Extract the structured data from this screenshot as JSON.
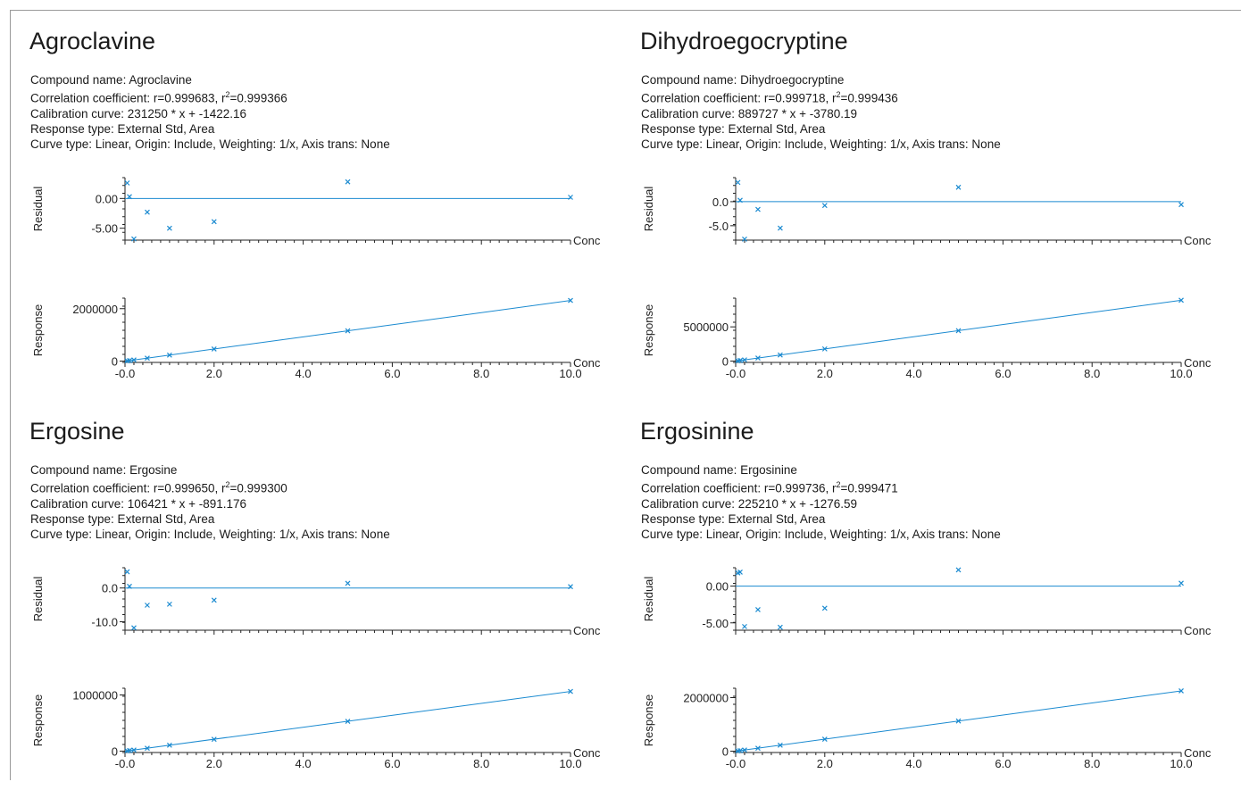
{
  "accent_color": "#1a8ad0",
  "panels": [
    {
      "title": "Agroclavine",
      "compound_line": "Compound name: Agroclavine",
      "correlation_prefix": "Correlation coefficient: r=0.999683, r",
      "correlation_suffix": "=0.999366",
      "calibration_line": "Calibration curve: 231250 * x + -1422.16",
      "response_type_line": "Response type: External Std, Area",
      "curve_type_line": "Curve type: Linear, Origin: Include, Weighting: 1/x, Axis trans: None"
    },
    {
      "title": "Dihydroegocryptine",
      "compound_line": "Compound name: Dihydroegocryptine",
      "correlation_prefix": "Correlation coefficient: r=0.999718, r",
      "correlation_suffix": "=0.999436",
      "calibration_line": "Calibration curve: 889727 * x + -3780.19",
      "response_type_line": "Response type: External Std, Area",
      "curve_type_line": "Curve type: Linear, Origin: Include, Weighting: 1/x, Axis trans: None"
    },
    {
      "title": "Ergosine",
      "compound_line": "Compound name: Ergosine",
      "correlation_prefix": "Correlation coefficient: r=0.999650, r",
      "correlation_suffix": "=0.999300",
      "calibration_line": "Calibration curve: 106421 * x + -891.176",
      "response_type_line": "Response type: External Std, Area",
      "curve_type_line": "Curve type: Linear, Origin: Include, Weighting: 1/x, Axis trans: None"
    },
    {
      "title": "Ergosinine",
      "compound_line": "Compound name: Ergosinine",
      "correlation_prefix": "Correlation coefficient: r=0.999736, r",
      "correlation_suffix": "=0.999471",
      "calibration_line": "Calibration curve: 225210 * x + -1276.59",
      "response_type_line": "Response type: External Std, Area",
      "curve_type_line": "Curve type: Linear, Origin: Include, Weighting: 1/x, Axis trans: None"
    }
  ],
  "chart_data": [
    {
      "type": "scatter",
      "title": "Agroclavine",
      "plot": "residual",
      "ylabel": "Residual",
      "xlabel": "Conc",
      "xlim": [
        0,
        10
      ],
      "ylim": [
        -7,
        3.5
      ],
      "yticks": [
        0,
        -5
      ],
      "ytick_labels": [
        "0.00",
        "-5.00"
      ],
      "points": [
        [
          0.05,
          2.6
        ],
        [
          0.1,
          0.3
        ],
        [
          0.2,
          -6.8
        ],
        [
          0.5,
          -2.3
        ],
        [
          1.0,
          -5.0
        ],
        [
          2.0,
          -3.9
        ],
        [
          5.0,
          2.8
        ],
        [
          10.0,
          0.2
        ]
      ],
      "fit_line": [
        [
          0,
          0
        ],
        [
          10,
          0
        ]
      ]
    },
    {
      "type": "scatter",
      "title": "Agroclavine",
      "plot": "response",
      "ylabel": "Response",
      "xlabel": "Conc",
      "xlim": [
        0,
        10
      ],
      "ylim": [
        -50000,
        2400000
      ],
      "yticks": [
        0,
        2000000
      ],
      "ytick_labels": [
        "0",
        "2000000"
      ],
      "xticks": [
        0,
        2,
        4,
        6,
        8,
        10
      ],
      "xtick_labels": [
        "-0.0",
        "2.0",
        "4.0",
        "6.0",
        "8.0",
        "10.0"
      ],
      "points": [
        [
          0.05,
          10140
        ],
        [
          0.1,
          21700
        ],
        [
          0.2,
          45000
        ],
        [
          0.5,
          114000
        ],
        [
          1.0,
          229800
        ],
        [
          2.0,
          461000
        ],
        [
          5.0,
          1156000
        ],
        [
          10.0,
          2312000
        ]
      ],
      "fit_line": [
        [
          0,
          -1422.16
        ],
        [
          10,
          2311077.84
        ]
      ]
    },
    {
      "type": "scatter",
      "title": "Dihydroegocryptine",
      "plot": "residual",
      "ylabel": "Residual",
      "xlabel": "Conc",
      "xlim": [
        0,
        10
      ],
      "ylim": [
        -8,
        5
      ],
      "yticks": [
        0,
        -5
      ],
      "ytick_labels": [
        "0.0",
        "-5.0"
      ],
      "points": [
        [
          0.05,
          4.0
        ],
        [
          0.1,
          0.3
        ],
        [
          0.2,
          -7.8
        ],
        [
          0.5,
          -1.6
        ],
        [
          1.0,
          -5.5
        ],
        [
          2.0,
          -0.8
        ],
        [
          5.0,
          3.0
        ],
        [
          10.0,
          -0.6
        ]
      ],
      "fit_line": [
        [
          0,
          0
        ],
        [
          10,
          0
        ]
      ]
    },
    {
      "type": "scatter",
      "title": "Dihydroegocryptine",
      "plot": "response",
      "ylabel": "Response",
      "xlabel": "Conc",
      "xlim": [
        0,
        10
      ],
      "ylim": [
        -200000,
        9200000
      ],
      "yticks": [
        0,
        5000000
      ],
      "ytick_labels": [
        "0",
        "5000000"
      ],
      "points": [
        [
          0.05,
          40700
        ],
        [
          0.1,
          85200
        ],
        [
          0.2,
          174100
        ],
        [
          0.5,
          441000
        ],
        [
          1.0,
          885900
        ],
        [
          2.0,
          1775700
        ],
        [
          5.0,
          4444800
        ],
        [
          10.0,
          8893500
        ]
      ],
      "fit_line": [
        [
          0,
          -3780.19
        ],
        [
          10,
          8893489.81
        ]
      ],
      "xticks": [
        0,
        2,
        4,
        6,
        8,
        10
      ],
      "xtick_labels": [
        "-0.0",
        "2.0",
        "4.0",
        "6.0",
        "8.0",
        "10.0"
      ]
    },
    {
      "type": "scatter",
      "title": "Ergosine",
      "plot": "residual",
      "ylabel": "Residual",
      "xlabel": "Conc",
      "xlim": [
        0,
        10
      ],
      "ylim": [
        -12.5,
        6
      ],
      "yticks": [
        0,
        -10
      ],
      "ytick_labels": [
        "0.0",
        "-10.0"
      ],
      "points": [
        [
          0.05,
          4.8
        ],
        [
          0.1,
          0.5
        ],
        [
          0.2,
          -11.8
        ],
        [
          0.5,
          -5.1
        ],
        [
          1.0,
          -4.8
        ],
        [
          2.0,
          -3.6
        ],
        [
          5.0,
          1.4
        ],
        [
          10.0,
          0.4
        ]
      ],
      "fit_line": [
        [
          0,
          0
        ],
        [
          10,
          0
        ]
      ]
    },
    {
      "type": "scatter",
      "title": "Ergosine",
      "plot": "response",
      "ylabel": "Response",
      "xlabel": "Conc",
      "xlim": [
        0,
        10
      ],
      "ylim": [
        -25000,
        1120000
      ],
      "yticks": [
        0,
        1000000
      ],
      "ytick_labels": [
        "0",
        "1000000"
      ],
      "points": [
        [
          0.05,
          4730
        ],
        [
          0.1,
          9800
        ],
        [
          0.2,
          20200
        ],
        [
          0.5,
          52300
        ],
        [
          1.0,
          104700
        ],
        [
          2.0,
          211300
        ],
        [
          5.0,
          531300
        ],
        [
          10.0,
          1063400
        ]
      ],
      "fit_line": [
        [
          0,
          -891.176
        ],
        [
          10,
          1063318.82
        ]
      ],
      "xticks": [
        0,
        2,
        4,
        6,
        8,
        10
      ],
      "xtick_labels": [
        "-0.0",
        "2.0",
        "4.0",
        "6.0",
        "8.0",
        "10.0"
      ]
    },
    {
      "type": "scatter",
      "title": "Ergosinine",
      "plot": "residual",
      "ylabel": "Residual",
      "xlabel": "Conc",
      "xlim": [
        0,
        10
      ],
      "ylim": [
        -6,
        2.5
      ],
      "yticks": [
        0,
        -5
      ],
      "ytick_labels": [
        "0.00",
        "-5.00"
      ],
      "points": [
        [
          0.05,
          1.8
        ],
        [
          0.1,
          1.9
        ],
        [
          0.2,
          -5.5
        ],
        [
          0.5,
          -3.2
        ],
        [
          1.0,
          -5.6
        ],
        [
          2.0,
          -3.0
        ],
        [
          5.0,
          2.2
        ],
        [
          10.0,
          0.4
        ]
      ],
      "fit_line": [
        [
          0,
          0
        ],
        [
          10,
          0
        ]
      ]
    },
    {
      "type": "scatter",
      "title": "Ergosinine",
      "plot": "response",
      "ylabel": "Response",
      "xlabel": "Conc",
      "xlim": [
        0,
        10
      ],
      "ylim": [
        -50000,
        2350000
      ],
      "yticks": [
        0,
        2000000
      ],
      "ytick_labels": [
        "0",
        "2000000"
      ],
      "points": [
        [
          0.05,
          9980
        ],
        [
          0.1,
          21250
        ],
        [
          0.2,
          43800
        ],
        [
          0.5,
          111000
        ],
        [
          1.0,
          223900
        ],
        [
          2.0,
          449500
        ],
        [
          5.0,
          1125900
        ],
        [
          10.0,
          2251000
        ]
      ],
      "fit_line": [
        [
          0,
          -1276.59
        ],
        [
          10,
          2250823.41
        ]
      ],
      "xticks": [
        0,
        2,
        4,
        6,
        8,
        10
      ],
      "xtick_labels": [
        "-0.0",
        "2.0",
        "4.0",
        "6.0",
        "8.0",
        "10.0"
      ]
    }
  ]
}
